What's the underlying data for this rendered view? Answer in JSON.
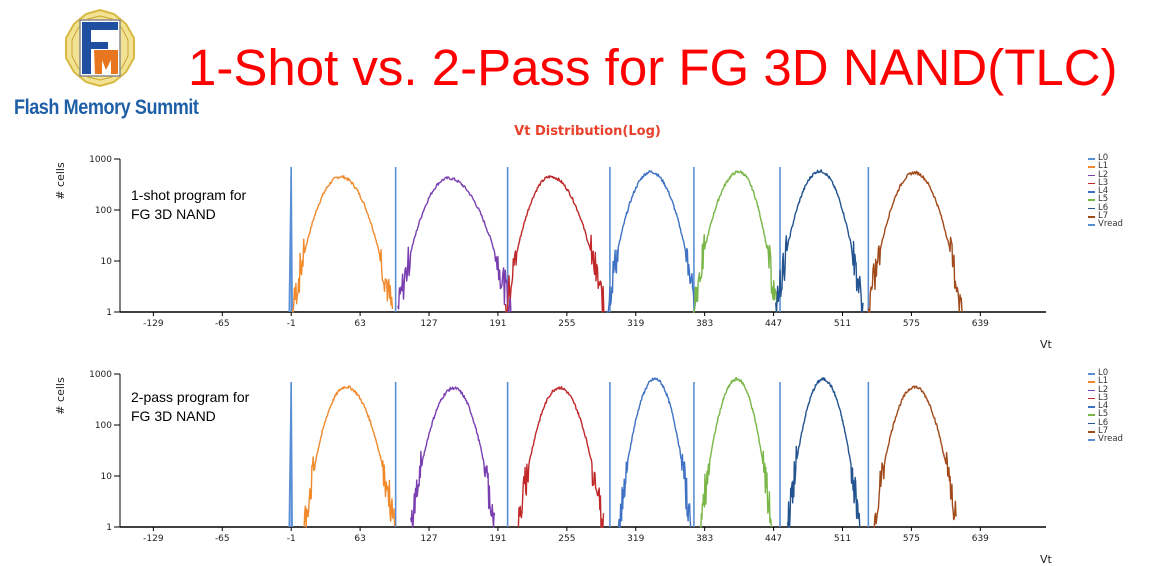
{
  "logo": {
    "text": "Flash Memory Summit"
  },
  "title": "1-Shot vs. 2-Pass for FG 3D NAND(TLC)",
  "chart_title": "Vt Distribution(Log)",
  "colors": {
    "L0": "#5b8fd6",
    "L1": "#f08a2c",
    "L2": "#7a3fb0",
    "L3": "#c0282a",
    "L4": "#3f72c4",
    "L5": "#7ab648",
    "L6": "#24548f",
    "L7": "#a14a1c",
    "Vread": "#5a8ed4",
    "axis": "#000000",
    "title": "#e8402a",
    "slide_title": "#ff0000"
  },
  "chart_data": [
    {
      "type": "line",
      "title": "Vt Distribution(Log)",
      "annotation": [
        "1-shot program for",
        "FG 3D NAND"
      ],
      "xlabel": "Vt",
      "ylabel": "# cells",
      "y_scale": "log",
      "xlim": [
        -160,
        700
      ],
      "ylim": [
        1,
        1000
      ],
      "x_ticks": [
        -129,
        -65,
        -1,
        63,
        127,
        191,
        255,
        319,
        383,
        447,
        511,
        575,
        639
      ],
      "y_ticks": [
        1,
        10,
        100,
        1000
      ],
      "y_tick_labels": [
        "1",
        "10",
        "100",
        "1000"
      ],
      "legend": [
        "L0",
        "L1",
        "L2",
        "L3",
        "L4",
        "L5",
        "L6",
        "L7",
        "Vread"
      ],
      "legend_position": "right",
      "vread_x": [
        -1,
        96,
        200,
        295,
        373,
        453,
        535
      ],
      "series": [
        {
          "name": "L1",
          "start": 0,
          "end": 93,
          "peak": 45,
          "max": 450
        },
        {
          "name": "L2",
          "start": 98,
          "end": 203,
          "peak": 145,
          "max": 420
        },
        {
          "name": "L3",
          "start": 198,
          "end": 290,
          "peak": 240,
          "max": 450
        },
        {
          "name": "L4",
          "start": 292,
          "end": 376,
          "peak": 333,
          "max": 560
        },
        {
          "name": "L5",
          "start": 372,
          "end": 450,
          "peak": 415,
          "max": 560
        },
        {
          "name": "L6",
          "start": 449,
          "end": 530,
          "peak": 490,
          "max": 580
        },
        {
          "name": "L7",
          "start": 535,
          "end": 622,
          "peak": 578,
          "max": 540
        }
      ]
    },
    {
      "type": "line",
      "annotation": [
        "2-pass program for",
        "FG 3D NAND"
      ],
      "xlabel": "Vt",
      "ylabel": "# cells",
      "y_scale": "log",
      "xlim": [
        -160,
        700
      ],
      "ylim": [
        1,
        1000
      ],
      "x_ticks": [
        -129,
        -65,
        -1,
        63,
        127,
        191,
        255,
        319,
        383,
        447,
        511,
        575,
        639
      ],
      "y_ticks": [
        1,
        10,
        100,
        1000
      ],
      "y_tick_labels": [
        "1",
        "10",
        "100",
        "1000"
      ],
      "legend": [
        "L0",
        "L1",
        "L2",
        "L3",
        "L4",
        "L5",
        "L6",
        "L7",
        "Vread"
      ],
      "legend_position": "right",
      "vread_x": [
        -1,
        96,
        200,
        295,
        373,
        453,
        535
      ],
      "series": [
        {
          "name": "L1",
          "start": 11,
          "end": 95,
          "peak": 50,
          "max": 560
        },
        {
          "name": "L2",
          "start": 110,
          "end": 188,
          "peak": 150,
          "max": 530
        },
        {
          "name": "L3",
          "start": 210,
          "end": 289,
          "peak": 248,
          "max": 540
        },
        {
          "name": "L4",
          "start": 303,
          "end": 370,
          "peak": 337,
          "max": 800
        },
        {
          "name": "L5",
          "start": 379,
          "end": 445,
          "peak": 413,
          "max": 790
        },
        {
          "name": "L6",
          "start": 460,
          "end": 527,
          "peak": 493,
          "max": 790
        },
        {
          "name": "L7",
          "start": 540,
          "end": 617,
          "peak": 578,
          "max": 560
        }
      ]
    }
  ]
}
